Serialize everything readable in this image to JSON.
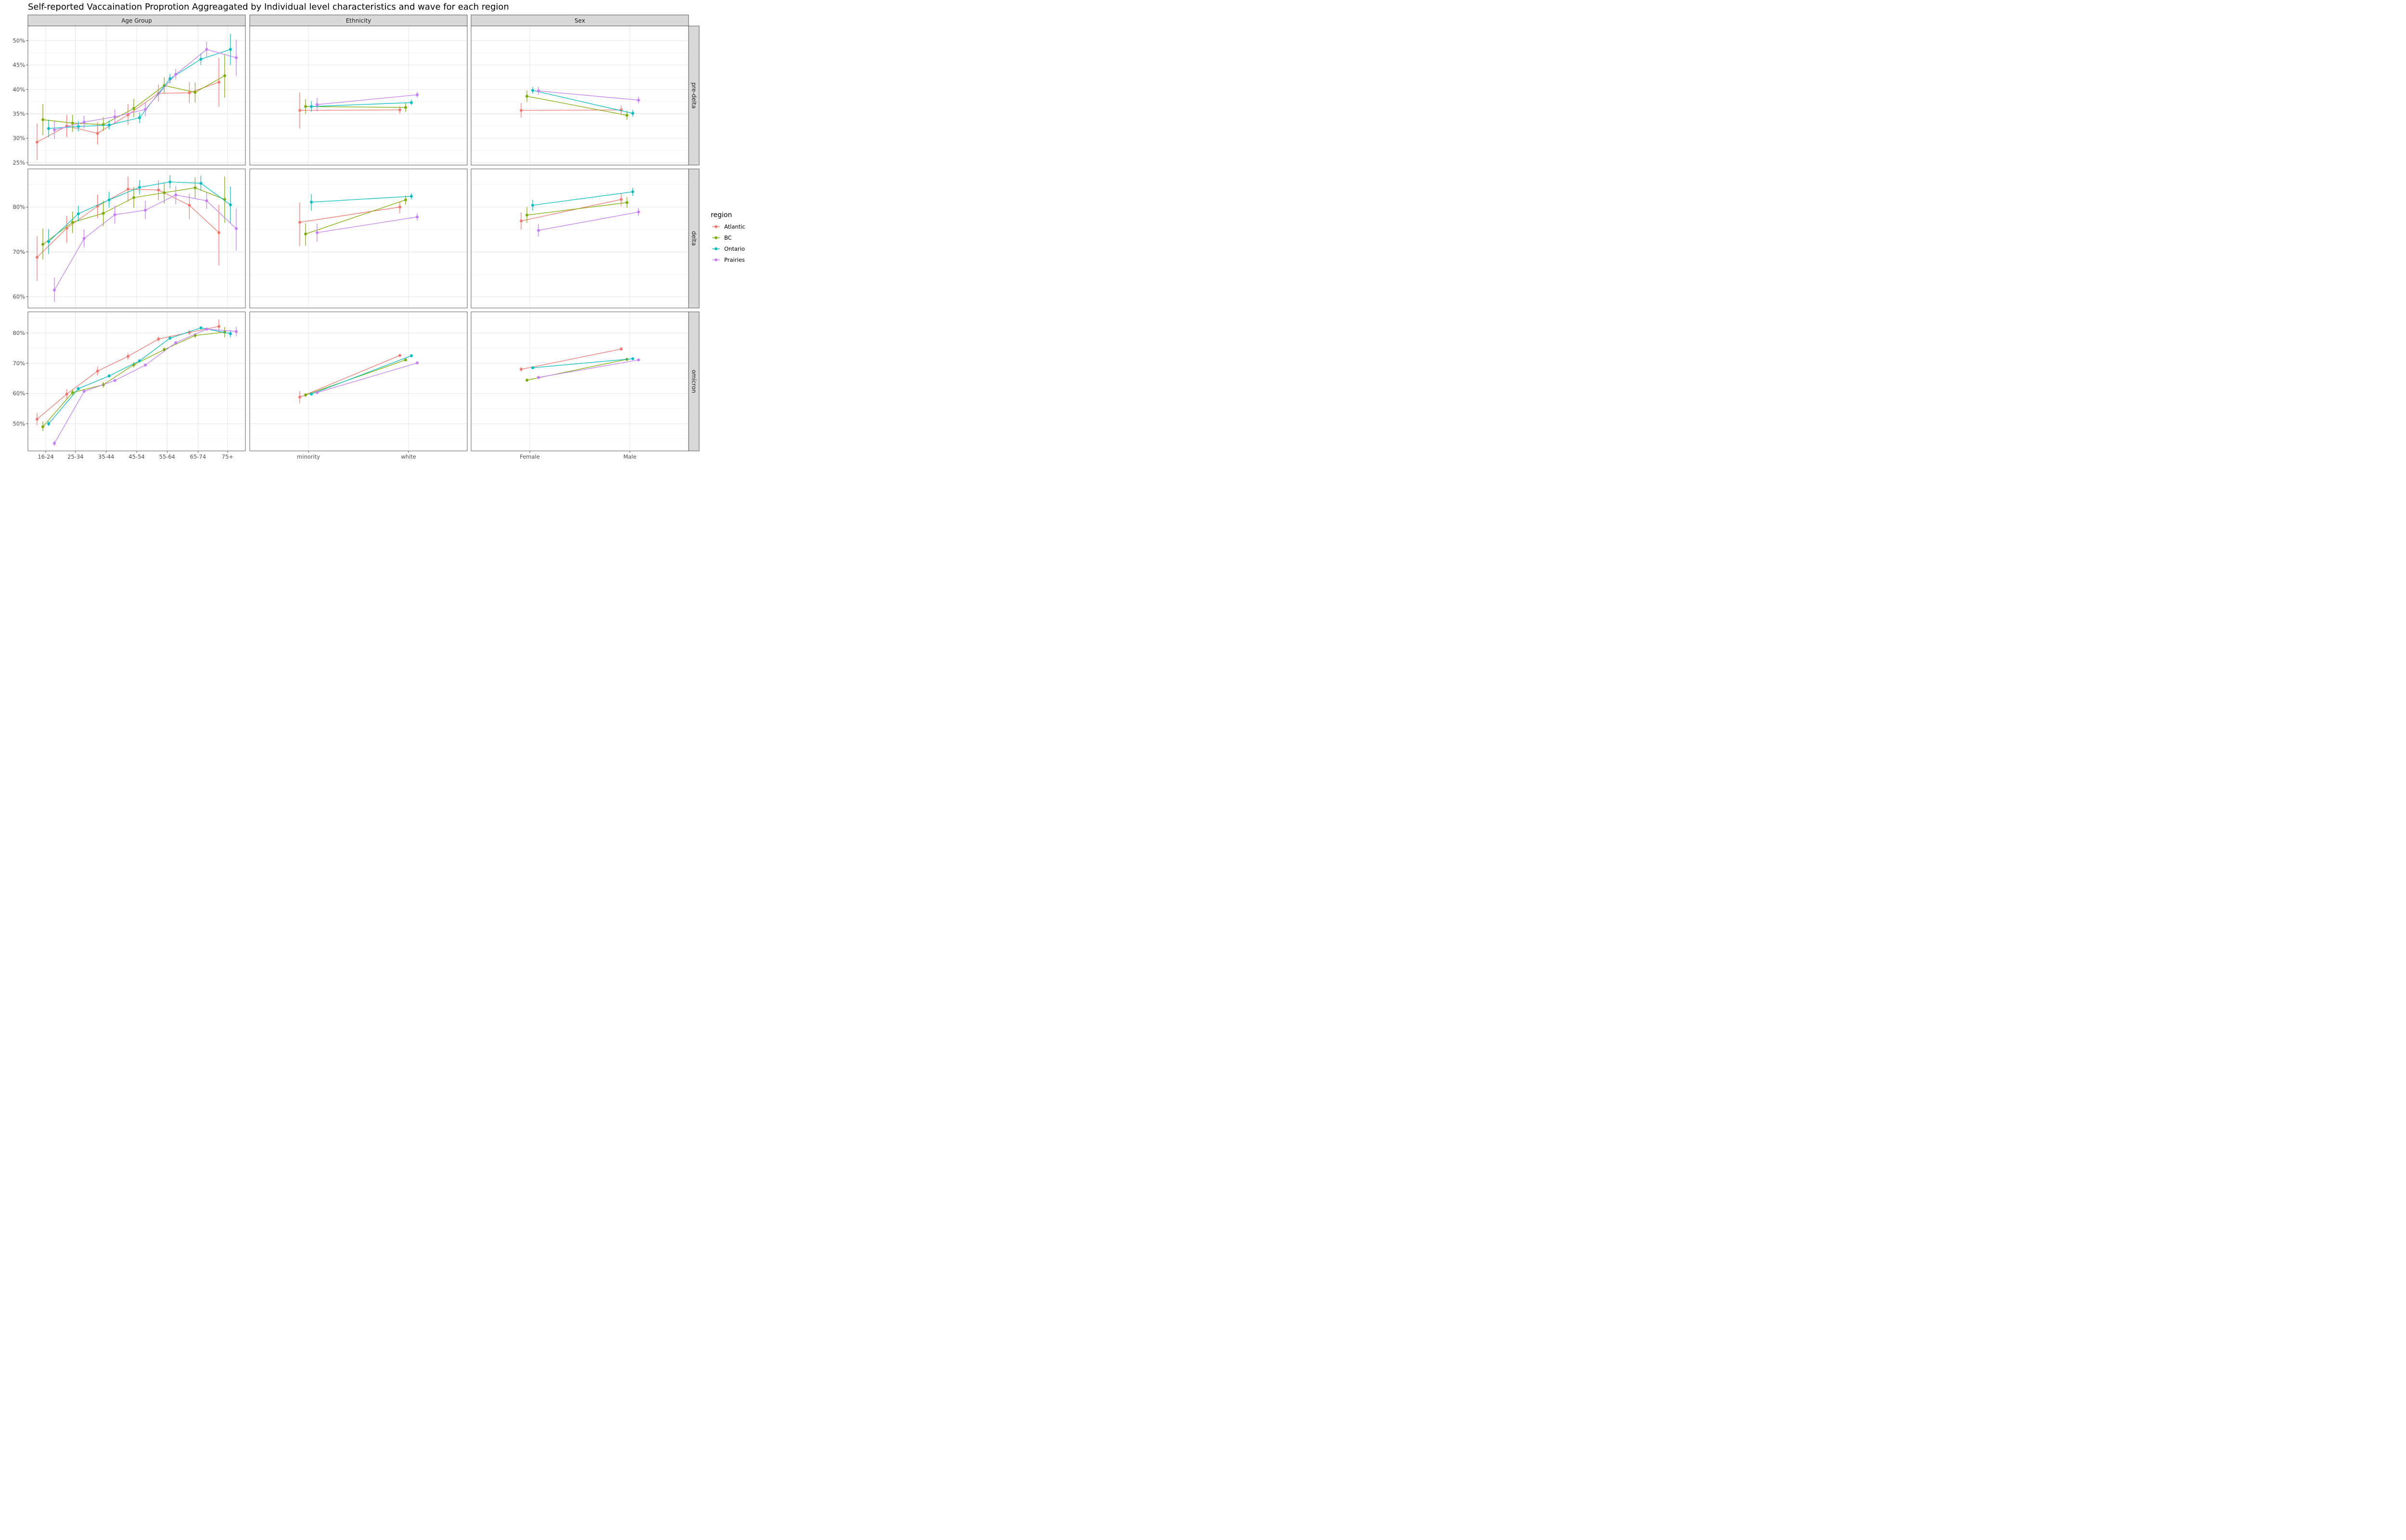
{
  "chart_data": {
    "type": "line",
    "title": "Self-reported Vaccaination Proprotion Aggreagated by Individual level characteristics and wave for each region",
    "facet_columns": [
      "Age Group",
      "Ethnicity",
      "Sex"
    ],
    "facet_rows": [
      "pre-delta",
      "delta",
      "omicron"
    ],
    "x_categories": {
      "Age Group": [
        "16-24",
        "25-34",
        "35-44",
        "45-54",
        "55-64",
        "65-74",
        "75+"
      ],
      "Ethnicity": [
        "minority",
        "white"
      ],
      "Sex": [
        "Female",
        "Male"
      ]
    },
    "rows": {
      "pre-delta": {
        "ylim": [
          24.5,
          53.0
        ],
        "yticks": [
          25,
          30,
          35,
          40,
          45,
          50
        ],
        "ytick_labels": [
          "25%",
          "30%",
          "35%",
          "40%",
          "45%",
          "50%"
        ]
      },
      "delta": {
        "ylim": [
          57.5,
          88.5
        ],
        "yticks": [
          60,
          70,
          80
        ],
        "ytick_labels": [
          "60%",
          "70%",
          "80%"
        ]
      },
      "omicron": {
        "ylim": [
          41.0,
          87.0
        ],
        "yticks": [
          50,
          60,
          70,
          80
        ],
        "ytick_labels": [
          "50%",
          "60%",
          "70%",
          "80%"
        ]
      }
    },
    "legend": {
      "title": "region",
      "position": "right"
    },
    "grid": true,
    "series": [
      {
        "name": "Atlantic",
        "color": "#F8766D",
        "panels": {
          "pre-delta": {
            "Age Group": [
              [
                29.2,
                25.5,
                33.0
              ],
              [
                32.5,
                30.2,
                34.8
              ],
              [
                31.0,
                28.7,
                33.3
              ],
              [
                34.8,
                32.7,
                37.0
              ],
              [
                39.2,
                37.5,
                41.0
              ],
              [
                39.3,
                37.2,
                41.5
              ],
              [
                41.5,
                36.5,
                46.5
              ]
            ],
            "Ethnicity": [
              [
                35.7,
                32.0,
                39.4
              ],
              [
                35.8,
                35.0,
                36.6
              ]
            ],
            "Sex": [
              [
                35.7,
                34.2,
                37.2
              ],
              [
                35.8,
                35.0,
                36.7
              ]
            ]
          },
          "delta": {
            "Age Group": [
              [
                68.8,
                63.5,
                73.5
              ],
              [
                75.3,
                72.0,
                78.0
              ],
              [
                80.2,
                77.5,
                82.8
              ],
              [
                84.0,
                81.2,
                86.8
              ],
              [
                83.8,
                81.5,
                86.0
              ],
              [
                80.4,
                77.3,
                83.0
              ],
              [
                74.3,
                67.0,
                80.5
              ]
            ],
            "Ethnicity": [
              [
                76.6,
                71.3,
                81.0
              ],
              [
                80.0,
                78.6,
                81.2
              ]
            ],
            "Sex": [
              [
                76.9,
                75.0,
                78.8
              ],
              [
                81.7,
                80.2,
                83.1
              ]
            ]
          },
          "omicron": {
            "Age Group": [
              [
                51.5,
                49.5,
                53.5
              ],
              [
                59.8,
                58.2,
                61.4
              ],
              [
                67.4,
                66.0,
                68.8
              ],
              [
                72.3,
                71.2,
                73.4
              ],
              [
                78.0,
                77.2,
                78.8
              ],
              [
                80.2,
                79.4,
                81.0
              ],
              [
                82.2,
                80.0,
                84.5
              ]
            ],
            "Ethnicity": [
              [
                58.8,
                56.8,
                60.8
              ],
              [
                72.6,
                72.1,
                73.1
              ]
            ],
            "Sex": [
              [
                68.0,
                67.3,
                68.7
              ],
              [
                74.7,
                74.2,
                75.3
              ]
            ]
          }
        }
      },
      {
        "name": "BC",
        "color": "#7CAE00",
        "panels": {
          "pre-delta": {
            "Age Group": [
              [
                33.8,
                30.6,
                37.0
              ],
              [
                33.1,
                31.3,
                34.8
              ],
              [
                32.8,
                31.5,
                34.3
              ],
              [
                36.1,
                34.3,
                38.1
              ],
              [
                40.8,
                39.2,
                42.5
              ],
              [
                39.4,
                37.3,
                41.4
              ],
              [
                42.8,
                38.3,
                47.3
              ]
            ],
            "Ethnicity": [
              [
                36.5,
                35.0,
                38.0
              ],
              [
                36.3,
                35.4,
                37.2
              ]
            ],
            "Sex": [
              [
                38.6,
                37.4,
                39.8
              ],
              [
                34.7,
                33.8,
                35.6
              ]
            ]
          },
          "delta": {
            "Age Group": [
              [
                71.7,
                68.3,
                75.2
              ],
              [
                76.6,
                74.2,
                79.0
              ],
              [
                78.6,
                75.8,
                81.4
              ],
              [
                82.1,
                79.8,
                84.5
              ],
              [
                83.2,
                80.8,
                85.3
              ],
              [
                84.3,
                81.9,
                86.7
              ],
              [
                81.7,
                76.5,
                86.8
              ]
            ],
            "Ethnicity": [
              [
                74.0,
                71.4,
                76.4
              ],
              [
                81.6,
                80.5,
                82.6
              ]
            ],
            "Sex": [
              [
                78.2,
                76.5,
                80.0
              ],
              [
                81.0,
                79.8,
                82.2
              ]
            ]
          },
          "omicron": {
            "Age Group": [
              [
                49.0,
                47.5,
                50.8
              ],
              [
                60.3,
                59.2,
                61.4
              ],
              [
                62.9,
                62.0,
                63.8
              ],
              [
                69.5,
                68.6,
                70.4
              ],
              [
                74.5,
                73.8,
                75.2
              ],
              [
                79.2,
                78.4,
                80.0
              ],
              [
                80.3,
                78.5,
                82.0
              ]
            ],
            "Ethnicity": [
              [
                59.5,
                58.9,
                60.1
              ],
              [
                71.1,
                70.6,
                71.6
              ]
            ],
            "Sex": [
              [
                64.4,
                63.9,
                64.9
              ],
              [
                71.3,
                70.8,
                71.7
              ]
            ]
          }
        }
      },
      {
        "name": "Ontario",
        "color": "#00BFC4",
        "panels": {
          "pre-delta": {
            "Age Group": [
              [
                32.0,
                30.2,
                33.8
              ],
              [
                32.4,
                31.4,
                33.5
              ],
              [
                32.7,
                31.8,
                33.6
              ],
              [
                34.2,
                33.1,
                35.3
              ],
              [
                42.2,
                41.2,
                43.2
              ],
              [
                46.2,
                45.0,
                47.4
              ],
              [
                48.2,
                45.0,
                51.4
              ]
            ],
            "Ethnicity": [
              [
                36.5,
                35.4,
                37.6
              ],
              [
                37.3,
                36.8,
                37.9
              ]
            ],
            "Sex": [
              [
                39.8,
                39.1,
                40.5
              ],
              [
                35.1,
                34.4,
                35.8
              ]
            ]
          },
          "delta": {
            "Age Group": [
              [
                72.3,
                69.5,
                75.1
              ],
              [
                78.5,
                76.8,
                80.3
              ],
              [
                81.6,
                79.9,
                83.4
              ],
              [
                84.4,
                82.8,
                86.0
              ],
              [
                85.6,
                84.2,
                87.1
              ],
              [
                85.3,
                83.6,
                87.0
              ],
              [
                80.5,
                76.3,
                84.6
              ]
            ],
            "Ethnicity": [
              [
                81.1,
                79.2,
                82.9
              ],
              [
                82.4,
                81.7,
                83.1
              ]
            ],
            "Sex": [
              [
                80.4,
                79.2,
                81.6
              ],
              [
                83.4,
                82.5,
                84.3
              ]
            ]
          },
          "omicron": {
            "Age Group": [
              [
                50.0,
                49.2,
                50.8
              ],
              [
                61.6,
                61.0,
                62.2
              ],
              [
                65.8,
                65.3,
                66.4
              ],
              [
                70.8,
                70.3,
                71.3
              ],
              [
                78.3,
                77.8,
                78.8
              ],
              [
                81.7,
                81.2,
                82.2
              ],
              [
                79.8,
                78.6,
                81.0
              ]
            ],
            "Ethnicity": [
              [
                59.8,
                59.3,
                60.3
              ],
              [
                72.5,
                72.1,
                72.9
              ]
            ],
            "Sex": [
              [
                68.5,
                68.1,
                68.9
              ],
              [
                71.5,
                71.1,
                71.9
              ]
            ]
          }
        }
      },
      {
        "name": "Prairies",
        "color": "#C77CFF",
        "panels": {
          "pre-delta": {
            "Age Group": [
              [
                31.7,
                29.8,
                33.6
              ],
              [
                33.3,
                32.0,
                34.6
              ],
              [
                34.4,
                33.2,
                35.9
              ],
              [
                35.9,
                34.5,
                37.3
              ],
              [
                43.1,
                42.0,
                44.2
              ],
              [
                48.2,
                46.6,
                49.8
              ],
              [
                46.5,
                42.8,
                50.2
              ]
            ],
            "Ethnicity": [
              [
                36.9,
                35.5,
                38.3
              ],
              [
                38.9,
                38.3,
                39.5
              ]
            ],
            "Sex": [
              [
                39.7,
                38.9,
                40.5
              ],
              [
                37.8,
                37.1,
                38.5
              ]
            ]
          },
          "delta": {
            "Age Group": [
              [
                61.5,
                58.8,
                64.3
              ],
              [
                73.0,
                71.0,
                75.0
              ],
              [
                78.3,
                76.3,
                80.3
              ],
              [
                79.3,
                77.3,
                81.4
              ],
              [
                82.7,
                80.6,
                84.7
              ],
              [
                81.4,
                79.6,
                83.2
              ],
              [
                75.2,
                70.3,
                79.6
              ]
            ],
            "Ethnicity": [
              [
                74.3,
                72.3,
                76.3
              ],
              [
                77.8,
                77.0,
                78.6
              ]
            ],
            "Sex": [
              [
                74.8,
                73.4,
                76.2
              ],
              [
                78.9,
                78.0,
                79.8
              ]
            ]
          },
          "omicron": {
            "Age Group": [
              [
                43.5,
                42.6,
                44.4
              ],
              [
                60.7,
                60.2,
                61.2
              ],
              [
                64.3,
                63.8,
                64.8
              ],
              [
                69.4,
                68.9,
                69.9
              ],
              [
                76.8,
                76.3,
                77.3
              ],
              [
                81.3,
                80.8,
                81.8
              ],
              [
                80.5,
                78.9,
                82.1
              ]
            ],
            "Ethnicity": [
              [
                60.3,
                59.8,
                60.8
              ],
              [
                70.1,
                69.6,
                70.6
              ]
            ],
            "Sex": [
              [
                65.3,
                64.8,
                65.8
              ],
              [
                71.1,
                70.7,
                71.5
              ]
            ]
          }
        }
      }
    ]
  }
}
